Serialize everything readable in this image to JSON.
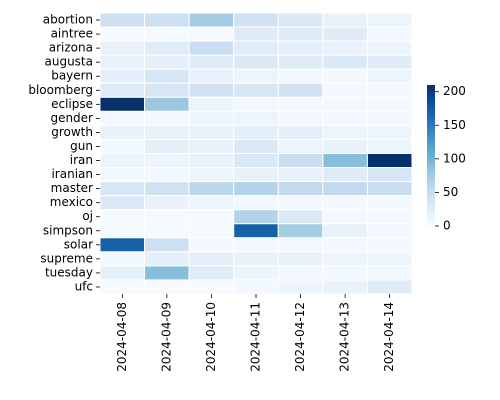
{
  "chart_data": {
    "type": "heatmap",
    "title": "",
    "xlabel": "",
    "ylabel": "",
    "x": [
      "2024-04-08",
      "2024-04-09",
      "2024-04-10",
      "2024-04-11",
      "2024-04-12",
      "2024-04-13",
      "2024-04-14"
    ],
    "y": [
      "abortion",
      "aintree",
      "arizona",
      "augusta",
      "bayern",
      "bloomberg",
      "eclipse",
      "gender",
      "growth",
      "gun",
      "iran",
      "iranian",
      "master",
      "mexico",
      "oj",
      "simpson",
      "solar",
      "supreme",
      "tuesday",
      "ufc"
    ],
    "values": [
      [
        45,
        45,
        75,
        40,
        30,
        15,
        10
      ],
      [
        2,
        2,
        3,
        25,
        25,
        25,
        5
      ],
      [
        15,
        25,
        50,
        25,
        20,
        15,
        10
      ],
      [
        15,
        20,
        25,
        30,
        25,
        30,
        25
      ],
      [
        20,
        35,
        15,
        10,
        5,
        5,
        10
      ],
      [
        25,
        35,
        40,
        35,
        40,
        5,
        5
      ],
      [
        210,
        80,
        10,
        5,
        5,
        5,
        5
      ],
      [
        5,
        5,
        10,
        10,
        5,
        5,
        5
      ],
      [
        15,
        15,
        15,
        20,
        20,
        10,
        10
      ],
      [
        5,
        20,
        15,
        30,
        10,
        15,
        10
      ],
      [
        10,
        10,
        15,
        30,
        50,
        90,
        210
      ],
      [
        5,
        5,
        10,
        15,
        15,
        25,
        35
      ],
      [
        35,
        40,
        60,
        65,
        55,
        55,
        50
      ],
      [
        30,
        15,
        10,
        5,
        5,
        5,
        5
      ],
      [
        2,
        2,
        2,
        65,
        30,
        5,
        5
      ],
      [
        2,
        2,
        2,
        170,
        75,
        15,
        5
      ],
      [
        170,
        45,
        5,
        5,
        5,
        5,
        5
      ],
      [
        5,
        20,
        20,
        15,
        15,
        10,
        10
      ],
      [
        20,
        90,
        25,
        10,
        5,
        5,
        5
      ],
      [
        2,
        2,
        2,
        5,
        10,
        15,
        25
      ]
    ],
    "colorbar": {
      "min": 0,
      "max": 210,
      "ticks": [
        0,
        50,
        100,
        150,
        200
      ]
    },
    "colormap": "Blues"
  }
}
